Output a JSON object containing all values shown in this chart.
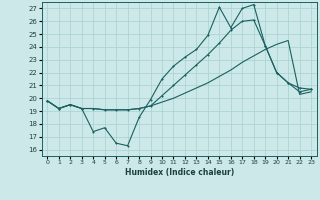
{
  "xlabel": "Humidex (Indice chaleur)",
  "xlim": [
    -0.5,
    23.5
  ],
  "ylim": [
    15.5,
    27.5
  ],
  "xticks": [
    0,
    1,
    2,
    3,
    4,
    5,
    6,
    7,
    8,
    9,
    10,
    11,
    12,
    13,
    14,
    15,
    16,
    17,
    18,
    19,
    20,
    21,
    22,
    23
  ],
  "yticks": [
    16,
    17,
    18,
    19,
    20,
    21,
    22,
    23,
    24,
    25,
    26,
    27
  ],
  "bg_color": "#cce8e8",
  "grid_color": "#a8d0d0",
  "line_color": "#1a6060",
  "line1_x": [
    0,
    1,
    2,
    3,
    4,
    5,
    6,
    7,
    8,
    9,
    10,
    11,
    12,
    13,
    14,
    15,
    16,
    17,
    18,
    19,
    20,
    21,
    22,
    23
  ],
  "line1_y": [
    19.8,
    19.2,
    19.5,
    19.2,
    17.4,
    17.7,
    16.5,
    16.3,
    18.5,
    19.9,
    21.5,
    22.5,
    23.2,
    23.8,
    24.9,
    27.1,
    25.5,
    27.0,
    27.3,
    24.1,
    22.0,
    21.2,
    20.8,
    20.7
  ],
  "line2_x": [
    0,
    1,
    2,
    3,
    4,
    5,
    6,
    7,
    8,
    9,
    10,
    11,
    12,
    13,
    14,
    15,
    16,
    17,
    18,
    19,
    20,
    21,
    22,
    23
  ],
  "line2_y": [
    19.8,
    19.2,
    19.5,
    19.2,
    19.2,
    19.1,
    19.1,
    19.1,
    19.2,
    19.4,
    20.2,
    21.0,
    21.8,
    22.6,
    23.4,
    24.3,
    25.3,
    26.0,
    26.1,
    24.1,
    22.0,
    21.2,
    20.5,
    20.7
  ],
  "line3_x": [
    0,
    1,
    2,
    3,
    4,
    5,
    6,
    7,
    8,
    9,
    10,
    11,
    12,
    13,
    14,
    15,
    16,
    17,
    18,
    19,
    20,
    21,
    22,
    23
  ],
  "line3_y": [
    19.8,
    19.2,
    19.5,
    19.2,
    19.2,
    19.1,
    19.1,
    19.1,
    19.2,
    19.4,
    19.7,
    20.0,
    20.4,
    20.8,
    21.2,
    21.7,
    22.2,
    22.8,
    23.3,
    23.8,
    24.2,
    24.5,
    20.3,
    20.5
  ]
}
